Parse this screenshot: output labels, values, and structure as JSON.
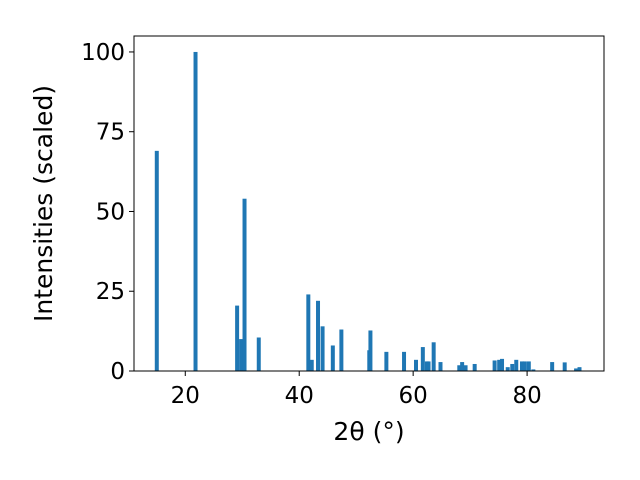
{
  "chart_data": {
    "type": "bar",
    "title": "",
    "xlabel": "2θ (°)",
    "ylabel": "Intensities (scaled)",
    "xlim": [
      11,
      93.5
    ],
    "ylim": [
      0,
      105
    ],
    "xticks": [
      20,
      40,
      60,
      80
    ],
    "yticks": [
      0,
      25,
      50,
      75,
      100
    ],
    "grid": false,
    "legend": "none",
    "bar_color": "#1f77b4",
    "bar_width": 0.7,
    "series": [
      {
        "x": [
          15.0,
          21.8,
          29.1,
          29.8,
          30.4,
          32.9,
          41.6,
          42.2,
          43.3,
          44.1,
          45.9,
          47.4,
          52.3,
          52.5,
          55.3,
          58.4,
          60.5,
          61.7,
          62.4,
          62.7,
          63.6,
          64.8,
          68.1,
          68.6,
          69.2,
          70.8,
          74.3,
          75.1,
          75.6,
          76.6,
          77.4,
          78.1,
          79.1,
          79.6,
          80.3,
          81.1,
          84.4,
          86.6,
          88.6,
          89.2
        ],
        "values": [
          69,
          100,
          20.5,
          10,
          54,
          10.5,
          24,
          3.5,
          22,
          14,
          8,
          13,
          6.5,
          12.7,
          6,
          6,
          3.5,
          7.5,
          3,
          3,
          9,
          2.8,
          1.8,
          2.8,
          1.8,
          2.2,
          3.3,
          3.5,
          3.8,
          1.2,
          2.2,
          3.5,
          3,
          3,
          3,
          0.5,
          2.8,
          2.7,
          0.8,
          1.2
        ]
      }
    ]
  }
}
